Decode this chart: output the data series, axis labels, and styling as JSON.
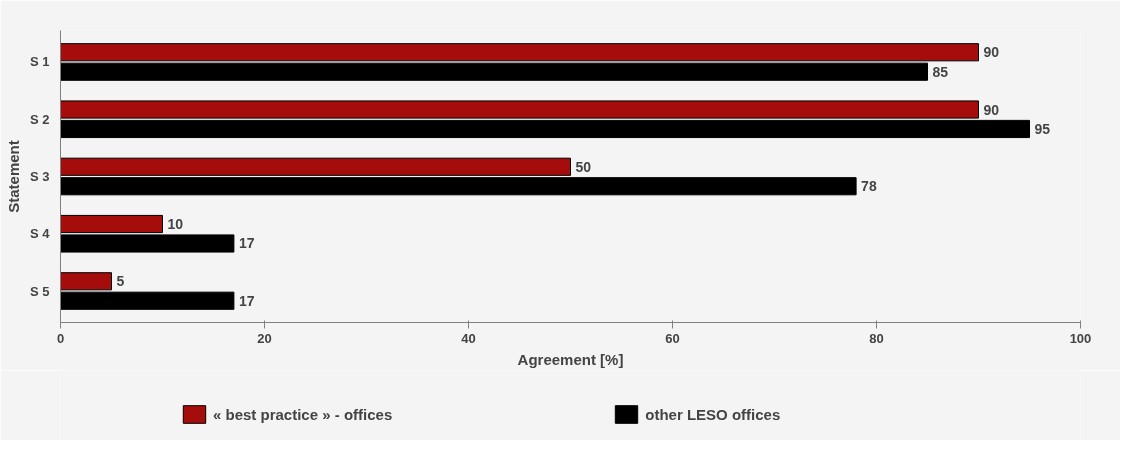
{
  "chart_data": {
    "type": "bar",
    "orientation": "horizontal",
    "ylabel": "Statement",
    "xlabel": "Agreement [%]",
    "categories": [
      "S 1",
      "S 2",
      "S 3",
      "S 4",
      "S 5"
    ],
    "series": [
      {
        "name": "« best practice » - offices",
        "color": "#a50d0d",
        "values": [
          90,
          90,
          50,
          10,
          5
        ]
      },
      {
        "name": "other LESO offices",
        "color": "#000000",
        "values": [
          85,
          95,
          78,
          17,
          17
        ]
      }
    ],
    "xlim": [
      0,
      100
    ],
    "xticks": [
      0,
      20,
      40,
      60,
      80,
      100
    ],
    "data_labels": true,
    "grid": false,
    "legend": "bottom"
  }
}
